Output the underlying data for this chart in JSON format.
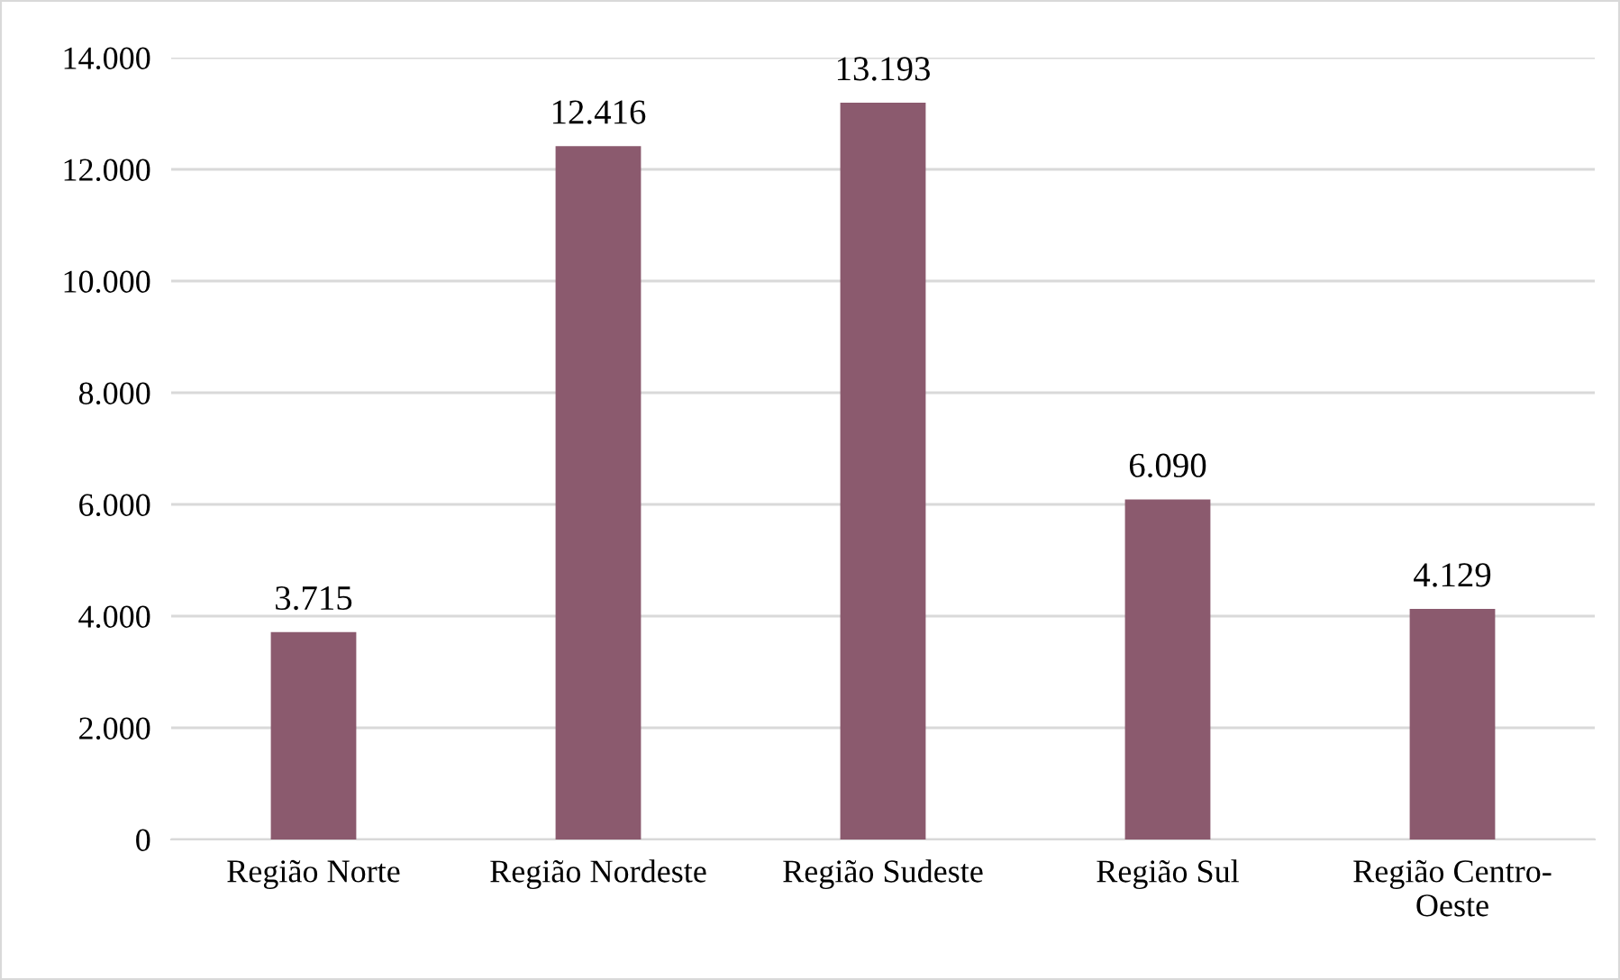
{
  "chart_data": {
    "type": "bar",
    "categories": [
      "Região Norte",
      "Região Nordeste",
      "Região Sudeste",
      "Região Sul",
      "Região Centro-\nOeste"
    ],
    "values": [
      3715,
      12416,
      13193,
      6090,
      4129
    ],
    "value_labels": [
      "3.715",
      "12.416",
      "13.193",
      "6.090",
      "4.129"
    ],
    "color": "#8b5a6e",
    "ylim": [
      0,
      14000
    ],
    "yticks": [
      {
        "value": 0,
        "label": "0"
      },
      {
        "value": 2000,
        "label": "2.000"
      },
      {
        "value": 4000,
        "label": "4.000"
      },
      {
        "value": 6000,
        "label": "6.000"
      },
      {
        "value": 8000,
        "label": "8.000"
      },
      {
        "value": 10000,
        "label": "10.000"
      },
      {
        "value": 12000,
        "label": "12.000"
      },
      {
        "value": 14000,
        "label": "14.000"
      }
    ],
    "grid": "y"
  }
}
